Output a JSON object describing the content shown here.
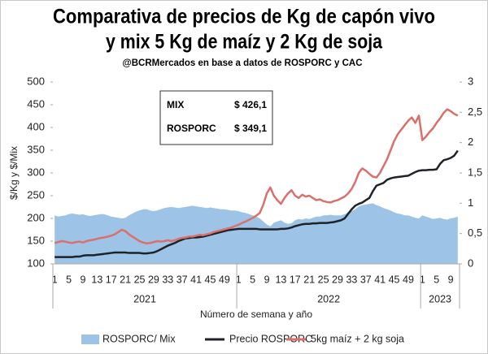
{
  "chart_data": {
    "type": "line",
    "title": [
      "Comparativa de precios de Kg de capón vivo",
      "y mix 5 Kg de maíz y 2 Kg de soja"
    ],
    "subtitle": "@BCRMercados en base a datos de ROSPORC y CAC",
    "y_label": "$/Kg y $/Mix",
    "x_label": "Número de semana y año",
    "years": [
      "2021",
      "2022",
      "2023"
    ],
    "categories": [
      1,
      null,
      null,
      null,
      5,
      null,
      null,
      null,
      9,
      null,
      null,
      null,
      13,
      null,
      null,
      null,
      17,
      null,
      null,
      null,
      21,
      null,
      null,
      null,
      25,
      null,
      null,
      null,
      29,
      null,
      null,
      null,
      33,
      null,
      null,
      null,
      37,
      null,
      null,
      null,
      41,
      null,
      null,
      null,
      45,
      null,
      null,
      null,
      49,
      null,
      null,
      null,
      1,
      null,
      null,
      null,
      5,
      null,
      null,
      null,
      9,
      null,
      null,
      null,
      13,
      null,
      null,
      null,
      17,
      null,
      null,
      null,
      21,
      null,
      null,
      null,
      25,
      null,
      null,
      null,
      29,
      null,
      null,
      null,
      33,
      null,
      null,
      null,
      37,
      null,
      null,
      null,
      41,
      null,
      null,
      null,
      45,
      null,
      null,
      null,
      49,
      null,
      null,
      null,
      1,
      null,
      null,
      null,
      5,
      null,
      null,
      null,
      9,
      null,
      null
    ],
    "ylim": [
      100,
      500
    ],
    "yticks": [
      100,
      150,
      200,
      250,
      300,
      350,
      400,
      450,
      500
    ],
    "y2lim": [
      0,
      3
    ],
    "y2ticks": [
      0,
      {
        "value": 0.5,
        "label": "0,5"
      },
      1,
      {
        "value": 1.5,
        "label": "1,5"
      },
      2,
      {
        "value": 2.5,
        "label": "2,5"
      },
      3
    ],
    "series": [
      {
        "name": "ROSPORC/ Mix",
        "color": "#9dc3e6",
        "style": "area",
        "axis": "y2",
        "values": [
          0.8,
          0.78,
          0.79,
          0.8,
          0.82,
          0.83,
          0.82,
          0.81,
          0.82,
          0.8,
          0.79,
          0.8,
          0.81,
          0.82,
          0.82,
          0.8,
          0.78,
          0.77,
          0.76,
          0.75,
          0.76,
          0.8,
          0.83,
          0.86,
          0.88,
          0.9,
          0.9,
          0.88,
          0.87,
          0.88,
          0.9,
          0.92,
          0.93,
          0.94,
          0.93,
          0.92,
          0.93,
          0.94,
          0.95,
          0.96,
          0.95,
          0.94,
          0.93,
          0.92,
          0.93,
          0.92,
          0.91,
          0.9,
          0.9,
          0.89,
          0.88,
          0.88,
          0.87,
          0.85,
          0.84,
          0.82,
          0.8,
          0.78,
          0.75,
          0.7,
          0.65,
          0.62,
          0.68,
          0.7,
          0.72,
          0.68,
          0.66,
          0.67,
          0.72,
          0.74,
          0.73,
          0.75,
          0.74,
          0.76,
          0.78,
          0.78,
          0.8,
          0.8,
          0.81,
          0.8,
          0.8,
          0.8,
          0.82,
          0.85,
          0.87,
          0.9,
          0.95,
          0.97,
          0.98,
          0.99,
          1.0,
          0.97,
          0.95,
          0.92,
          0.9,
          0.88,
          0.85,
          0.83,
          0.82,
          0.8,
          0.8,
          0.78,
          0.76,
          0.75,
          0.8,
          0.78,
          0.76,
          0.74,
          0.75,
          0.76,
          0.74,
          0.73,
          0.75,
          0.76,
          0.78
        ]
      },
      {
        "name": "Precio ROSPORC",
        "color": "#1f2328",
        "style": "line",
        "axis": "y",
        "values": [
          115,
          115,
          115,
          115,
          115,
          115,
          116,
          116,
          118,
          119,
          119,
          119,
          120,
          121,
          122,
          123,
          124,
          125,
          125,
          125,
          125,
          124,
          124,
          124,
          124,
          123,
          123,
          124,
          125,
          128,
          132,
          136,
          140,
          143,
          146,
          150,
          153,
          156,
          157,
          158,
          158,
          159,
          160,
          162,
          164,
          166,
          168,
          170,
          172,
          174,
          175,
          176,
          177,
          177,
          177,
          177,
          177,
          177,
          176,
          176,
          176,
          176,
          176,
          176,
          177,
          177,
          178,
          180,
          183,
          185,
          187,
          188,
          188,
          189,
          189,
          190,
          190,
          190,
          191,
          192,
          194,
          196,
          200,
          210,
          220,
          228,
          232,
          235,
          240,
          245,
          260,
          272,
          275,
          278,
          285,
          288,
          290,
          291,
          292,
          293,
          294,
          298,
          302,
          305,
          306,
          306,
          307,
          307,
          308,
          320,
          328,
          330,
          333,
          338,
          349.1
        ]
      },
      {
        "name": "5kg maíz + 2 kg soja",
        "color": "#d9706c",
        "style": "line",
        "axis": "y",
        "values": [
          146,
          148,
          150,
          149,
          147,
          146,
          148,
          149,
          147,
          150,
          152,
          153,
          155,
          157,
          158,
          160,
          162,
          165,
          170,
          175,
          172,
          165,
          160,
          155,
          150,
          147,
          145,
          146,
          148,
          150,
          149,
          150,
          152,
          150,
          152,
          155,
          157,
          158,
          160,
          160,
          162,
          164,
          163,
          165,
          167,
          170,
          172,
          174,
          176,
          178,
          180,
          183,
          186,
          190,
          193,
          197,
          201,
          206,
          212,
          230,
          255,
          268,
          250,
          240,
          232,
          245,
          255,
          262,
          250,
          245,
          252,
          248,
          250,
          245,
          240,
          242,
          238,
          236,
          235,
          238,
          240,
          244,
          248,
          255,
          265,
          280,
          300,
          310,
          305,
          298,
          292,
          290,
          300,
          315,
          330,
          350,
          370,
          385,
          395,
          405,
          415,
          422,
          410,
          426,
          372,
          380,
          390,
          398,
          410,
          420,
          432,
          440,
          436,
          430,
          426.1
        ]
      }
    ],
    "info_box": [
      {
        "label": "MIX",
        "value_label": "$ 426,1"
      },
      {
        "label": "ROSPORC",
        "value_label": "$ 349,1"
      }
    ],
    "grid": false
  }
}
